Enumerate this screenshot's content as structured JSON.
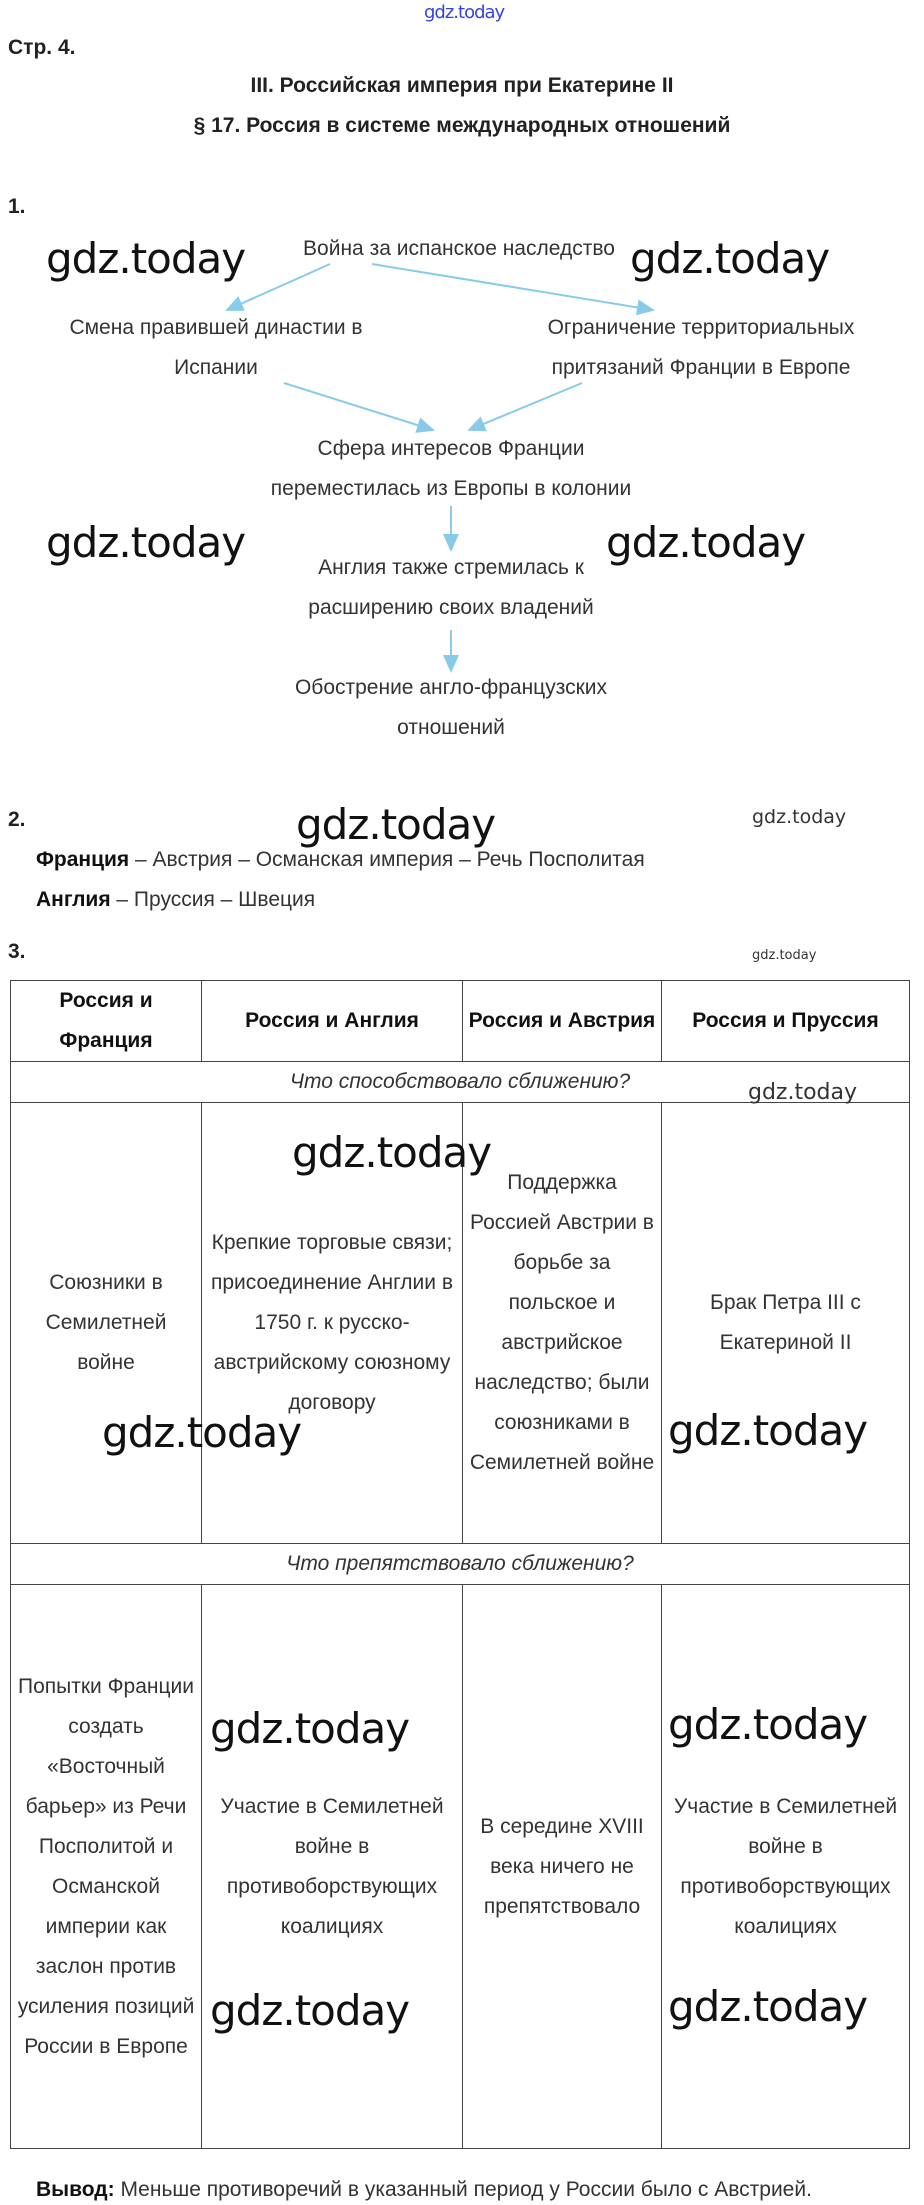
{
  "watermark": "gdz.today",
  "page_label": "Стр. 4.",
  "chapter": "III. Российская империя при Екатерине II",
  "paragraph": "§ 17. Россия в системе международных отношений",
  "task1": {
    "num": "1.",
    "nodes": {
      "root": "Война за испанское наследство",
      "left": [
        "Смена правившей династии в",
        "Испании"
      ],
      "right": [
        "Ограничение территориальных",
        "притязаний Франции в Европе"
      ],
      "mid": [
        "Сфера интересов Франции",
        "переместилась из Европы в колонии"
      ],
      "eng": [
        "Англия также стремилась к",
        "расширению своих владений"
      ],
      "last": [
        "Обострение англо-французских",
        "отношений"
      ]
    },
    "arrow_color": "#87cbe8"
  },
  "task2": {
    "num": "2.",
    "line1_bold": "Франция",
    "line1": " – Австрия – Османская империя – Речь Посполитая",
    "line2_bold": "Англия",
    "line2": " – Пруссия – Швеция"
  },
  "task3": {
    "num": "3.",
    "headers": [
      "Россия и Франция",
      "Россия и Англия",
      "Россия и Австрия",
      "Россия и Пруссия"
    ],
    "section1": "Что способствовало сближению?",
    "row1": [
      "Союзники в Семилетней войне",
      "Крепкие торговые связи; присоединение Англии в 1750 г. к русско-австрийскому союзному договору",
      "Поддержка Россией Австрии в борьбе за польское и австрийское наследство; были союзниками в Семилетней войне",
      "Брак Петра III с Екатериной II"
    ],
    "section2": "Что препятствовало сближению?",
    "row2": [
      "Попытки Франции создать «Восточный барьер» из Речи Посполитой и Османской империи как заслон против усиления позиций России в Европе",
      "Участие в Семилетней войне в противоборствующих коалициях",
      "В середине XVIII века ничего не препятствовало",
      "Участие в Семилетней войне в противоборствующих коалициях"
    ]
  },
  "conclusion": {
    "label": "Вывод:",
    "text": " Меньше противоречий в указанный период у России было с Австрией."
  }
}
